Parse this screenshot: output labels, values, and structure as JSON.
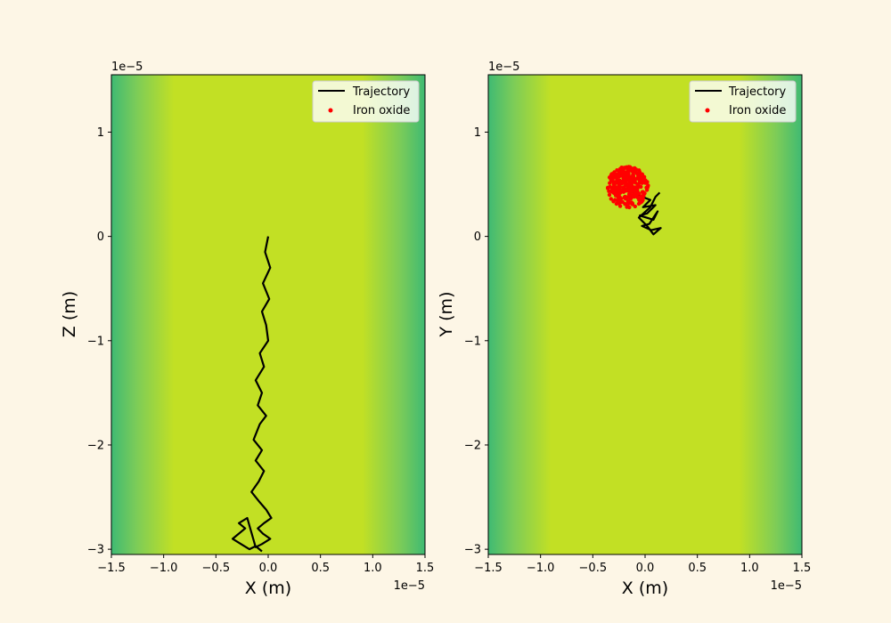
{
  "chart_data": [
    {
      "type": "line",
      "panel": "left",
      "xlabel": "X (m)",
      "ylabel": "Z (m)",
      "x_offset_text": "1e−5",
      "y_offset_text": "1e−5",
      "xlim": [
        -1.5,
        1.5
      ],
      "ylim": [
        -3.05,
        1.55
      ],
      "xticks": [
        -1.5,
        -1.0,
        -0.5,
        0.0,
        0.5,
        1.0,
        1.5
      ],
      "xtick_labels": [
        "−1.5",
        "−1.0",
        "−0.5",
        "0.0",
        "0.5",
        "1.0",
        "1.5"
      ],
      "yticks": [
        -3,
        -2,
        -1,
        0,
        1
      ],
      "ytick_labels": [
        "−3",
        "−2",
        "−1",
        "0",
        "1"
      ],
      "background": "vertical gradient field: green at x edges, yellow-green in center",
      "grid": false,
      "legend_position": "upper-right",
      "legend": [
        {
          "label": "Trajectory",
          "kind": "line",
          "color": "#000000"
        },
        {
          "label": "Iron oxide",
          "kind": "marker",
          "color": "#ff0000"
        }
      ],
      "series": [
        {
          "name": "Trajectory",
          "color": "#000000",
          "x": [
            0.0,
            -0.03,
            0.02,
            -0.05,
            0.01,
            -0.06,
            -0.02,
            0.0,
            -0.08,
            -0.04,
            -0.12,
            -0.06,
            -0.1,
            -0.02,
            -0.08,
            -0.14,
            -0.06,
            -0.12,
            -0.04,
            -0.09,
            -0.16,
            -0.08,
            -0.02,
            0.03,
            -0.04,
            -0.1,
            -0.05,
            0.02,
            -0.06,
            -0.12,
            -0.2,
            -0.28,
            -0.22,
            -0.34,
            -0.26,
            -0.18,
            -0.12,
            -0.06
          ],
          "y": [
            0.0,
            -0.15,
            -0.3,
            -0.45,
            -0.6,
            -0.72,
            -0.85,
            -1.0,
            -1.12,
            -1.25,
            -1.38,
            -1.5,
            -1.62,
            -1.72,
            -1.8,
            -1.95,
            -2.05,
            -2.15,
            -2.25,
            -2.35,
            -2.45,
            -2.55,
            -2.62,
            -2.7,
            -2.75,
            -2.8,
            -2.85,
            -2.9,
            -2.95,
            -2.98,
            -2.7,
            -2.75,
            -2.8,
            -2.9,
            -2.95,
            -3.0,
            -2.97,
            -3.02
          ]
        }
      ]
    },
    {
      "type": "scatter",
      "panel": "right",
      "xlabel": "X (m)",
      "ylabel": "Y (m)",
      "x_offset_text": "1e−5",
      "y_offset_text": "1e−5",
      "xlim": [
        -1.5,
        1.5
      ],
      "ylim": [
        -3.05,
        1.55
      ],
      "xticks": [
        -1.5,
        -1.0,
        -0.5,
        0.0,
        0.5,
        1.0,
        1.5
      ],
      "xtick_labels": [
        "−1.5",
        "−1.0",
        "−0.5",
        "0.0",
        "0.5",
        "1.0",
        "1.5"
      ],
      "yticks": [
        -3,
        -2,
        -1,
        0,
        1
      ],
      "ytick_labels": [
        "−3",
        "−2",
        "−1",
        "0",
        "1"
      ],
      "background": "vertical gradient field: green at x edges, yellow-green in center",
      "grid": false,
      "legend_position": "upper-right",
      "legend": [
        {
          "label": "Trajectory",
          "kind": "line",
          "color": "#000000"
        },
        {
          "label": "Iron oxide",
          "kind": "marker",
          "color": "#ff0000"
        }
      ],
      "series": [
        {
          "name": "Trajectory",
          "color": "#000000",
          "x": [
            -0.15,
            -0.08,
            0.05,
            -0.02,
            0.1,
            0.02,
            -0.05,
            0.08,
            0.12,
            0.04,
            -0.03,
            0.06,
            0.15,
            0.08,
            0.02,
            -0.06,
            0.05,
            0.1,
            0.14
          ],
          "y": [
            0.45,
            0.4,
            0.35,
            0.28,
            0.3,
            0.22,
            0.2,
            0.16,
            0.24,
            0.12,
            0.1,
            0.06,
            0.08,
            0.02,
            0.1,
            0.18,
            0.28,
            0.38,
            0.42
          ]
        },
        {
          "name": "Iron oxide",
          "color": "#ff0000",
          "cluster_center": [
            -0.17,
            0.47
          ],
          "cluster_radius": 0.2,
          "point_count": 300
        }
      ]
    }
  ]
}
